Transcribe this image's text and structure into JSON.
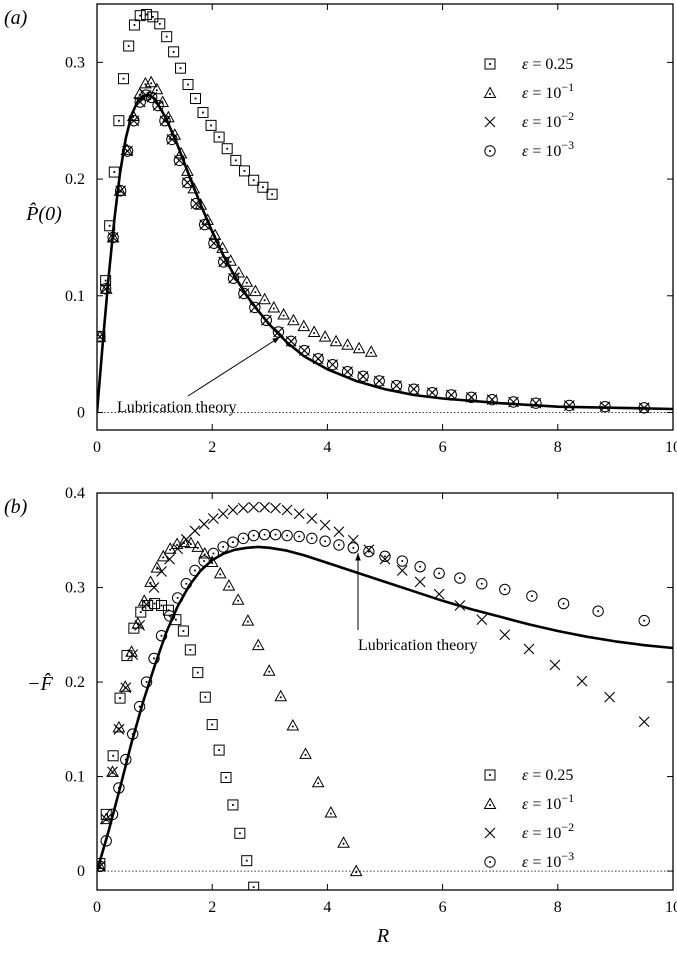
{
  "chart_data": [
    {
      "type": "scatter",
      "panel_label": "(a)",
      "ylabel": "P̂(0)",
      "xlabel": "",
      "xlim": [
        0,
        10
      ],
      "ylim": [
        -0.015,
        0.35
      ],
      "x_ticks": [
        "0",
        "2",
        "4",
        "6",
        "8",
        "10"
      ],
      "y_ticks": [
        "0",
        "0.1",
        "0.2",
        "0.3"
      ],
      "legend_position": "top-right",
      "annotation": "Lubrication theory",
      "series": [
        {
          "name": "ε = 0.25",
          "marker": "square",
          "x": [
            0.05,
            0.15,
            0.22,
            0.3,
            0.38,
            0.46,
            0.55,
            0.65,
            0.75,
            0.86,
            0.97,
            1.09,
            1.21,
            1.33,
            1.45,
            1.58,
            1.71,
            1.84,
            1.98,
            2.12,
            2.26,
            2.41,
            2.56,
            2.72,
            2.88,
            3.04
          ],
          "y": [
            0.065,
            0.113,
            0.16,
            0.206,
            0.25,
            0.286,
            0.314,
            0.332,
            0.34,
            0.341,
            0.339,
            0.333,
            0.322,
            0.309,
            0.295,
            0.281,
            0.269,
            0.257,
            0.246,
            0.236,
            0.226,
            0.216,
            0.207,
            0.199,
            0.193,
            0.187
          ]
        },
        {
          "name": "ε = 10⁻¹",
          "marker": "triangle",
          "x": [
            0.05,
            0.16,
            0.28,
            0.4,
            0.52,
            0.63,
            0.74,
            0.84,
            0.94,
            1.04,
            1.14,
            1.24,
            1.35,
            1.46,
            1.57,
            1.68,
            1.8,
            1.92,
            2.05,
            2.18,
            2.32,
            2.46,
            2.6,
            2.75,
            2.91,
            3.07,
            3.24,
            3.41,
            3.59,
            3.77,
            3.96,
            4.15,
            4.35,
            4.55,
            4.76
          ],
          "y": [
            0.065,
            0.106,
            0.15,
            0.19,
            0.225,
            0.254,
            0.273,
            0.282,
            0.283,
            0.277,
            0.266,
            0.253,
            0.238,
            0.222,
            0.207,
            0.192,
            0.178,
            0.165,
            0.152,
            0.141,
            0.13,
            0.12,
            0.112,
            0.104,
            0.097,
            0.09,
            0.084,
            0.079,
            0.074,
            0.069,
            0.065,
            0.061,
            0.058,
            0.055,
            0.052
          ]
        },
        {
          "name": "ε = 10⁻²",
          "marker": "cross",
          "x": [
            0.05,
            0.15,
            0.28,
            0.41,
            0.53,
            0.64,
            0.75,
            0.85,
            0.95,
            1.06,
            1.18,
            1.3,
            1.43,
            1.57,
            1.72,
            1.87,
            2.03,
            2.2,
            2.37,
            2.55,
            2.74,
            2.94,
            3.15,
            3.37,
            3.6,
            3.84,
            4.09,
            4.35,
            4.62,
            4.9,
            5.2,
            5.5,
            5.82,
            6.15,
            6.5,
            6.86,
            7.23,
            7.62,
            8.2,
            8.82,
            9.5
          ],
          "y": [
            0.065,
            0.106,
            0.15,
            0.19,
            0.224,
            0.25,
            0.266,
            0.272,
            0.27,
            0.263,
            0.25,
            0.234,
            0.216,
            0.197,
            0.179,
            0.161,
            0.145,
            0.129,
            0.115,
            0.102,
            0.09,
            0.079,
            0.069,
            0.061,
            0.053,
            0.046,
            0.041,
            0.035,
            0.031,
            0.027,
            0.023,
            0.02,
            0.017,
            0.015,
            0.013,
            0.011,
            0.009,
            0.008,
            0.006,
            0.005,
            0.004
          ]
        },
        {
          "name": "ε = 10⁻³",
          "marker": "circle-dot",
          "x": [
            0.05,
            0.15,
            0.28,
            0.41,
            0.53,
            0.64,
            0.75,
            0.85,
            0.95,
            1.06,
            1.18,
            1.3,
            1.43,
            1.57,
            1.72,
            1.87,
            2.03,
            2.2,
            2.37,
            2.55,
            2.74,
            2.94,
            3.15,
            3.37,
            3.6,
            3.84,
            4.09,
            4.35,
            4.62,
            4.9,
            5.2,
            5.5,
            5.82,
            6.15,
            6.5,
            6.86,
            7.23,
            7.62,
            8.2,
            8.82,
            9.5
          ],
          "y": [
            0.065,
            0.106,
            0.15,
            0.19,
            0.224,
            0.25,
            0.266,
            0.272,
            0.27,
            0.263,
            0.25,
            0.234,
            0.216,
            0.197,
            0.179,
            0.161,
            0.145,
            0.129,
            0.115,
            0.102,
            0.09,
            0.079,
            0.069,
            0.061,
            0.053,
            0.046,
            0.041,
            0.035,
            0.031,
            0.027,
            0.023,
            0.02,
            0.017,
            0.015,
            0.013,
            0.011,
            0.009,
            0.008,
            0.006,
            0.005,
            0.004
          ]
        }
      ],
      "theory_curve": {
        "x": [
          0,
          0.1,
          0.2,
          0.3,
          0.4,
          0.5,
          0.6,
          0.7,
          0.8,
          0.9,
          1.0,
          1.2,
          1.4,
          1.6,
          1.8,
          2.0,
          2.2,
          2.4,
          2.6,
          2.8,
          3.0,
          3.3,
          3.6,
          4.0,
          4.5,
          5.0,
          5.5,
          6.0,
          7.0,
          8.0,
          9.0,
          10.0
        ],
        "y": [
          0,
          0.06,
          0.115,
          0.165,
          0.205,
          0.235,
          0.255,
          0.266,
          0.271,
          0.272,
          0.269,
          0.252,
          0.229,
          0.203,
          0.178,
          0.155,
          0.134,
          0.116,
          0.1,
          0.087,
          0.075,
          0.06,
          0.048,
          0.037,
          0.027,
          0.02,
          0.015,
          0.012,
          0.008,
          0.005,
          0.004,
          0.003
        ]
      }
    },
    {
      "type": "scatter",
      "panel_label": "(b)",
      "ylabel": "−F̂",
      "xlabel": "R",
      "xlim": [
        0,
        10
      ],
      "ylim": [
        -0.02,
        0.4
      ],
      "x_ticks": [
        "0",
        "2",
        "4",
        "6",
        "8",
        "10"
      ],
      "y_ticks": [
        "0",
        "0.1",
        "0.2",
        "0.3",
        "0.4"
      ],
      "legend_position": "bottom-right",
      "annotation": "Lubrication theory",
      "series": [
        {
          "name": "ε = 0.25",
          "marker": "square",
          "x": [
            0.05,
            0.16,
            0.28,
            0.4,
            0.52,
            0.64,
            0.76,
            0.88,
            1.0,
            1.12,
            1.24,
            1.37,
            1.5,
            1.62,
            1.75,
            1.88,
            2.0,
            2.12,
            2.24,
            2.36,
            2.48,
            2.6,
            2.72,
            2.84,
            2.96
          ],
          "y": [
            0.008,
            0.06,
            0.122,
            0.183,
            0.228,
            0.257,
            0.274,
            0.281,
            0.283,
            0.281,
            0.276,
            0.266,
            0.254,
            0.234,
            0.21,
            0.184,
            0.155,
            0.128,
            0.099,
            0.07,
            0.04,
            0.011,
            -0.017,
            -0.04,
            -0.06
          ]
        },
        {
          "name": "ε = 10⁻¹",
          "marker": "triangle",
          "x": [
            0.05,
            0.16,
            0.27,
            0.38,
            0.49,
            0.6,
            0.71,
            0.82,
            0.93,
            1.04,
            1.15,
            1.27,
            1.39,
            1.51,
            1.63,
            1.75,
            1.87,
            2.0,
            2.14,
            2.29,
            2.45,
            2.62,
            2.8,
            2.99,
            3.19,
            3.4,
            3.62,
            3.84,
            4.06,
            4.28,
            4.5
          ],
          "y": [
            0.005,
            0.055,
            0.105,
            0.152,
            0.195,
            0.232,
            0.262,
            0.286,
            0.306,
            0.321,
            0.333,
            0.341,
            0.346,
            0.348,
            0.347,
            0.343,
            0.336,
            0.327,
            0.315,
            0.302,
            0.287,
            0.265,
            0.239,
            0.212,
            0.185,
            0.154,
            0.124,
            0.094,
            0.062,
            0.03,
            0.0
          ]
        },
        {
          "name": "ε = 10⁻²",
          "marker": "cross",
          "x": [
            0.05,
            0.16,
            0.27,
            0.38,
            0.5,
            0.62,
            0.74,
            0.86,
            0.99,
            1.12,
            1.26,
            1.4,
            1.55,
            1.7,
            1.86,
            2.02,
            2.19,
            2.36,
            2.54,
            2.72,
            2.91,
            3.1,
            3.3,
            3.51,
            3.73,
            3.96,
            4.2,
            4.45,
            4.72,
            5.0,
            5.3,
            5.61,
            5.94,
            6.3,
            6.68,
            7.08,
            7.5,
            7.95,
            8.42,
            8.9,
            9.5
          ],
          "y": [
            0.005,
            0.055,
            0.105,
            0.15,
            0.194,
            0.229,
            0.26,
            0.282,
            0.3,
            0.317,
            0.33,
            0.341,
            0.351,
            0.36,
            0.367,
            0.373,
            0.378,
            0.382,
            0.384,
            0.385,
            0.385,
            0.384,
            0.382,
            0.378,
            0.373,
            0.366,
            0.359,
            0.35,
            0.34,
            0.33,
            0.318,
            0.306,
            0.293,
            0.281,
            0.266,
            0.25,
            0.235,
            0.218,
            0.201,
            0.184,
            0.158
          ]
        },
        {
          "name": "ε = 10⁻³",
          "marker": "circle-dot",
          "x": [
            0.05,
            0.16,
            0.27,
            0.38,
            0.5,
            0.62,
            0.74,
            0.86,
            0.99,
            1.12,
            1.26,
            1.4,
            1.55,
            1.7,
            1.86,
            2.02,
            2.19,
            2.36,
            2.54,
            2.72,
            2.91,
            3.1,
            3.3,
            3.51,
            3.73,
            3.96,
            4.2,
            4.45,
            4.72,
            5.0,
            5.3,
            5.61,
            5.94,
            6.3,
            6.68,
            7.08,
            7.55,
            8.1,
            8.7,
            9.5
          ],
          "y": [
            0.005,
            0.032,
            0.06,
            0.088,
            0.118,
            0.145,
            0.174,
            0.2,
            0.225,
            0.249,
            0.27,
            0.289,
            0.304,
            0.318,
            0.328,
            0.336,
            0.343,
            0.348,
            0.352,
            0.355,
            0.356,
            0.356,
            0.355,
            0.354,
            0.352,
            0.349,
            0.345,
            0.342,
            0.338,
            0.333,
            0.328,
            0.322,
            0.315,
            0.31,
            0.304,
            0.298,
            0.291,
            0.283,
            0.275,
            0.265
          ]
        }
      ],
      "theory_curve": {
        "x": [
          0,
          0.2,
          0.4,
          0.6,
          0.8,
          1.0,
          1.2,
          1.4,
          1.6,
          1.8,
          2.0,
          2.2,
          2.4,
          2.6,
          2.8,
          3.0,
          3.3,
          3.6,
          4.0,
          4.5,
          5.0,
          5.5,
          6.0,
          6.5,
          7.0,
          7.5,
          8.0,
          8.5,
          9.0,
          9.5,
          10.0
        ],
        "y": [
          0,
          0.042,
          0.088,
          0.136,
          0.179,
          0.217,
          0.252,
          0.28,
          0.302,
          0.318,
          0.329,
          0.336,
          0.34,
          0.342,
          0.343,
          0.342,
          0.339,
          0.334,
          0.326,
          0.316,
          0.306,
          0.296,
          0.286,
          0.277,
          0.269,
          0.261,
          0.254,
          0.248,
          0.243,
          0.239,
          0.236
        ]
      }
    }
  ]
}
